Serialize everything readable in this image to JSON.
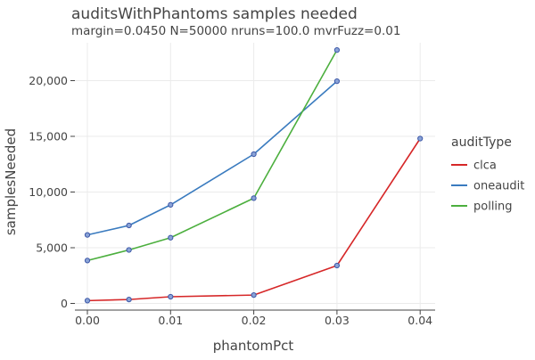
{
  "chart_data": {
    "type": "line",
    "title": "auditsWithPhantoms samples needed",
    "subtitle": "margin=0.0450 N=50000 nruns=100.0 mvrFuzz=0.01",
    "xlabel": "phantomPct",
    "ylabel": "samplesNeeded",
    "xlim": [
      -0.0015,
      0.0418
    ],
    "ylim": [
      -600,
      23400
    ],
    "x_ticks": [
      "0.00",
      "0.01",
      "0.02",
      "0.03",
      "0.04"
    ],
    "x_tick_values": [
      0,
      0.01,
      0.02,
      0.03,
      0.04
    ],
    "y_ticks": [
      "0",
      "5,000",
      "10,000",
      "15,000",
      "20,000"
    ],
    "y_tick_values": [
      0,
      5000,
      10000,
      15000,
      20000
    ],
    "grid": true,
    "legend": {
      "title": "auditType",
      "placement": "right"
    },
    "series": [
      {
        "name": "clca",
        "color": "#d62728",
        "x": [
          0,
          0.005,
          0.01,
          0.02,
          0.03,
          0.04
        ],
        "y": [
          250,
          350,
          600,
          750,
          3400,
          14800
        ]
      },
      {
        "name": "oneaudit",
        "color": "#3a7bbf",
        "x": [
          0,
          0.005,
          0.01,
          0.02,
          0.03
        ],
        "y": [
          6150,
          7000,
          8850,
          13400,
          19950
        ]
      },
      {
        "name": "polling",
        "color": "#4caf3e",
        "x": [
          0,
          0.005,
          0.01,
          0.02,
          0.03
        ],
        "y": [
          3850,
          4800,
          5900,
          9450,
          22750
        ]
      }
    ]
  }
}
